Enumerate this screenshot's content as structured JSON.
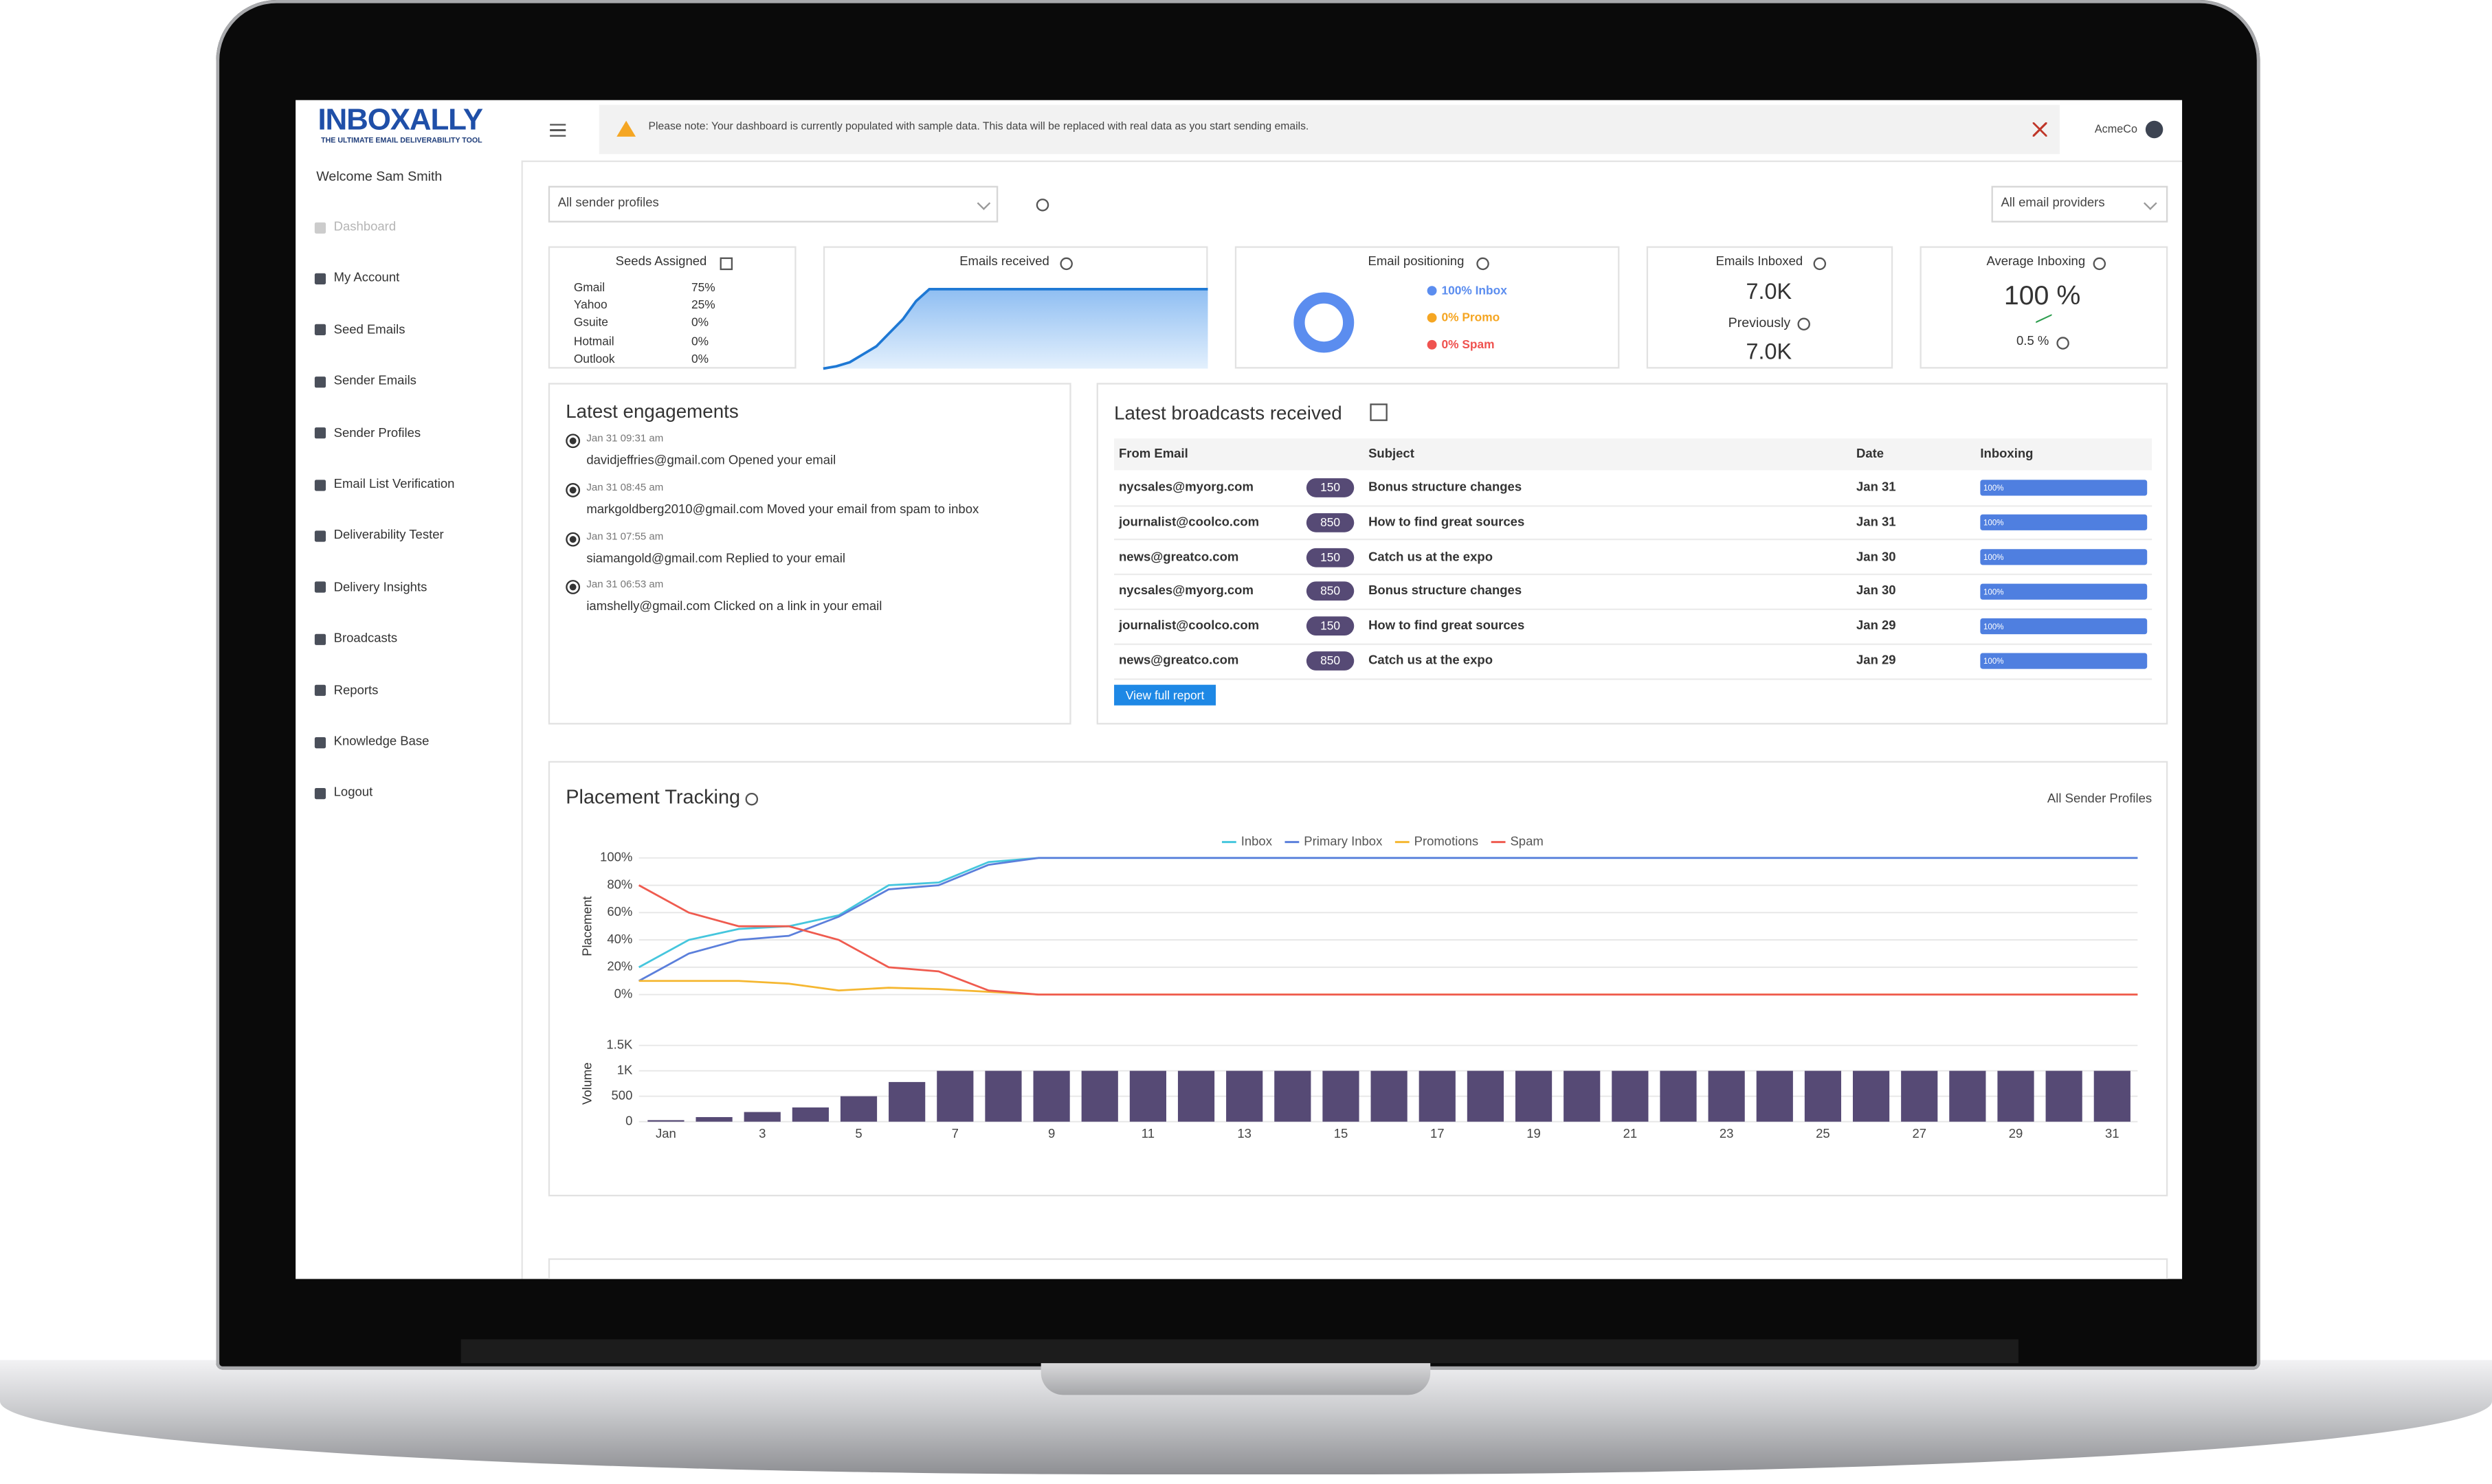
{
  "header": {
    "logo": "INBOXALLY",
    "tagline": "THE ULTIMATE EMAIL DELIVERABILITY TOOL",
    "notice": "Please note: Your dashboard is currently populated with sample data. This data will be replaced with real data as you start sending emails.",
    "account": "AcmeCo"
  },
  "sidebar": {
    "welcome": "Welcome Sam Smith",
    "items": [
      "Dashboard",
      "My Account",
      "Seed Emails",
      "Sender Emails",
      "Sender Profiles",
      "Email List Verification",
      "Deliverability Tester",
      "Delivery Insights",
      "Broadcasts",
      "Reports",
      "Knowledge Base",
      "Logout"
    ]
  },
  "filters": {
    "sender": "All sender profiles",
    "providers": "All email providers"
  },
  "seeds": {
    "title": "Seeds Assigned",
    "rows": [
      {
        "name": "Gmail",
        "share": "75%"
      },
      {
        "name": "Yahoo",
        "share": "25%"
      },
      {
        "name": "Gsuite",
        "share": "0%"
      },
      {
        "name": "Hotmail",
        "share": "0%"
      },
      {
        "name": "Outlook",
        "share": "0%"
      }
    ]
  },
  "emails_received": {
    "title": "Emails received",
    "values": [
      0,
      3,
      8,
      18,
      28,
      45,
      62,
      85,
      100,
      100,
      100,
      100,
      100,
      100,
      100,
      100,
      100,
      100,
      100,
      100,
      100,
      100,
      100,
      100,
      100,
      100,
      100,
      100,
      100,
      100
    ]
  },
  "positioning": {
    "title": "Email positioning",
    "items": [
      {
        "label": "100% Inbox",
        "value": 100,
        "color": "#5b8def"
      },
      {
        "label": "0% Promo",
        "value": 0,
        "color": "#f5a623"
      },
      {
        "label": "0% Spam",
        "value": 0,
        "color": "#ef5350"
      }
    ]
  },
  "inboxed": {
    "title": "Emails Inboxed",
    "value": "7.0K",
    "previous_title": "Previously",
    "previous": "7.0K"
  },
  "average": {
    "title": "Average Inboxing",
    "value": "100 %",
    "change": "0.5 %"
  },
  "engagements": {
    "title": "Latest engagements",
    "items": [
      {
        "time": "Jan 31 09:31 am",
        "text": "davidjeffries@gmail.com Opened your email"
      },
      {
        "time": "Jan 31 08:45 am",
        "text": "markgoldberg2010@gmail.com Moved your email from spam to inbox"
      },
      {
        "time": "Jan 31 07:55 am",
        "text": "siamangold@gmail.com Replied to your email"
      },
      {
        "time": "Jan 31 06:53 am",
        "text": "iamshelly@gmail.com Clicked on a link in your email"
      }
    ]
  },
  "broadcasts": {
    "title": "Latest broadcasts received",
    "columns": [
      "From Email",
      "Subject",
      "Date",
      "Inboxing"
    ],
    "rows": [
      {
        "from": "nycsales@myorg.com",
        "count": 150,
        "subject": "Bonus structure changes",
        "date": "Jan 31",
        "inboxing": 100,
        "inboxing_label": "100%"
      },
      {
        "from": "journalist@coolco.com",
        "count": 850,
        "subject": "How to find great sources",
        "date": "Jan 31",
        "inboxing": 100,
        "inboxing_label": "100%"
      },
      {
        "from": "news@greatco.com",
        "count": 150,
        "subject": "Catch us at the expo",
        "date": "Jan 30",
        "inboxing": 100,
        "inboxing_label": "100%"
      },
      {
        "from": "nycsales@myorg.com",
        "count": 850,
        "subject": "Bonus structure changes",
        "date": "Jan 30",
        "inboxing": 100,
        "inboxing_label": "100%"
      },
      {
        "from": "journalist@coolco.com",
        "count": 150,
        "subject": "How to find great sources",
        "date": "Jan 29",
        "inboxing": 100,
        "inboxing_label": "100%"
      },
      {
        "from": "news@greatco.com",
        "count": 850,
        "subject": "Catch us at the expo",
        "date": "Jan 29",
        "inboxing": 100,
        "inboxing_label": "100%"
      }
    ],
    "button": "View full report"
  },
  "placement": {
    "title": "Placement Tracking",
    "filter": "All Sender Profiles"
  },
  "chart_data": [
    {
      "type": "line",
      "y_label": "Placement",
      "ylim": [
        0,
        100
      ],
      "yticks": [
        {
          "value": 0,
          "label": "0%"
        },
        {
          "value": 20,
          "label": "20%"
        },
        {
          "value": 40,
          "label": "40%"
        },
        {
          "value": 60,
          "label": "60%"
        },
        {
          "value": 80,
          "label": "80%"
        },
        {
          "value": 100,
          "label": "100%"
        }
      ],
      "grid": true,
      "series": [
        {
          "name": "Inbox",
          "color": "#45c6dd",
          "values": [
            20,
            40,
            48,
            50,
            58,
            80,
            82,
            97,
            100,
            100,
            100,
            100,
            100,
            100,
            100,
            100,
            100,
            100,
            100,
            100,
            100,
            100,
            100,
            100,
            100,
            100,
            100,
            100,
            100,
            100,
            100
          ]
        },
        {
          "name": "Primary Inbox",
          "color": "#5b7fdb",
          "values": [
            10,
            30,
            40,
            43,
            57,
            77,
            80,
            95,
            100,
            100,
            100,
            100,
            100,
            100,
            100,
            100,
            100,
            100,
            100,
            100,
            100,
            100,
            100,
            100,
            100,
            100,
            100,
            100,
            100,
            100,
            100
          ]
        },
        {
          "name": "Promotions",
          "color": "#f5b731",
          "values": [
            10,
            10,
            10,
            8,
            3,
            5,
            4,
            2,
            0,
            0,
            0,
            0,
            0,
            0,
            0,
            0,
            0,
            0,
            0,
            0,
            0,
            0,
            0,
            0,
            0,
            0,
            0,
            0,
            0,
            0,
            0
          ]
        },
        {
          "name": "Spam",
          "color": "#ef5b4f",
          "values": [
            80,
            60,
            50,
            50,
            40,
            20,
            17,
            3,
            0,
            0,
            0,
            0,
            0,
            0,
            0,
            0,
            0,
            0,
            0,
            0,
            0,
            0,
            0,
            0,
            0,
            0,
            0,
            0,
            0,
            0,
            0
          ]
        }
      ]
    },
    {
      "type": "bar",
      "y_label": "Volume",
      "color": "#564a75",
      "ylim": [
        0,
        1500
      ],
      "yticks": [
        0,
        500,
        {
          "value": 1000,
          "label": "1K"
        },
        {
          "value": 1500,
          "label": "1.5K"
        }
      ],
      "grid": true,
      "categories": [
        "Jan",
        null,
        "3",
        null,
        "5",
        null,
        "7",
        null,
        "9",
        null,
        "11",
        null,
        "13",
        null,
        "15",
        null,
        "17",
        null,
        "19",
        null,
        "21",
        null,
        "23",
        null,
        "25",
        null,
        "27",
        null,
        "29",
        null,
        "31"
      ],
      "values": [
        30,
        90,
        190,
        280,
        500,
        780,
        1000,
        1000,
        1000,
        1000,
        1000,
        1000,
        1000,
        1000,
        1000,
        1000,
        1000,
        1000,
        1000,
        1000,
        1000,
        1000,
        1000,
        1000,
        1000,
        1000,
        1000,
        1000,
        1000,
        1000,
        1000
      ]
    }
  ]
}
